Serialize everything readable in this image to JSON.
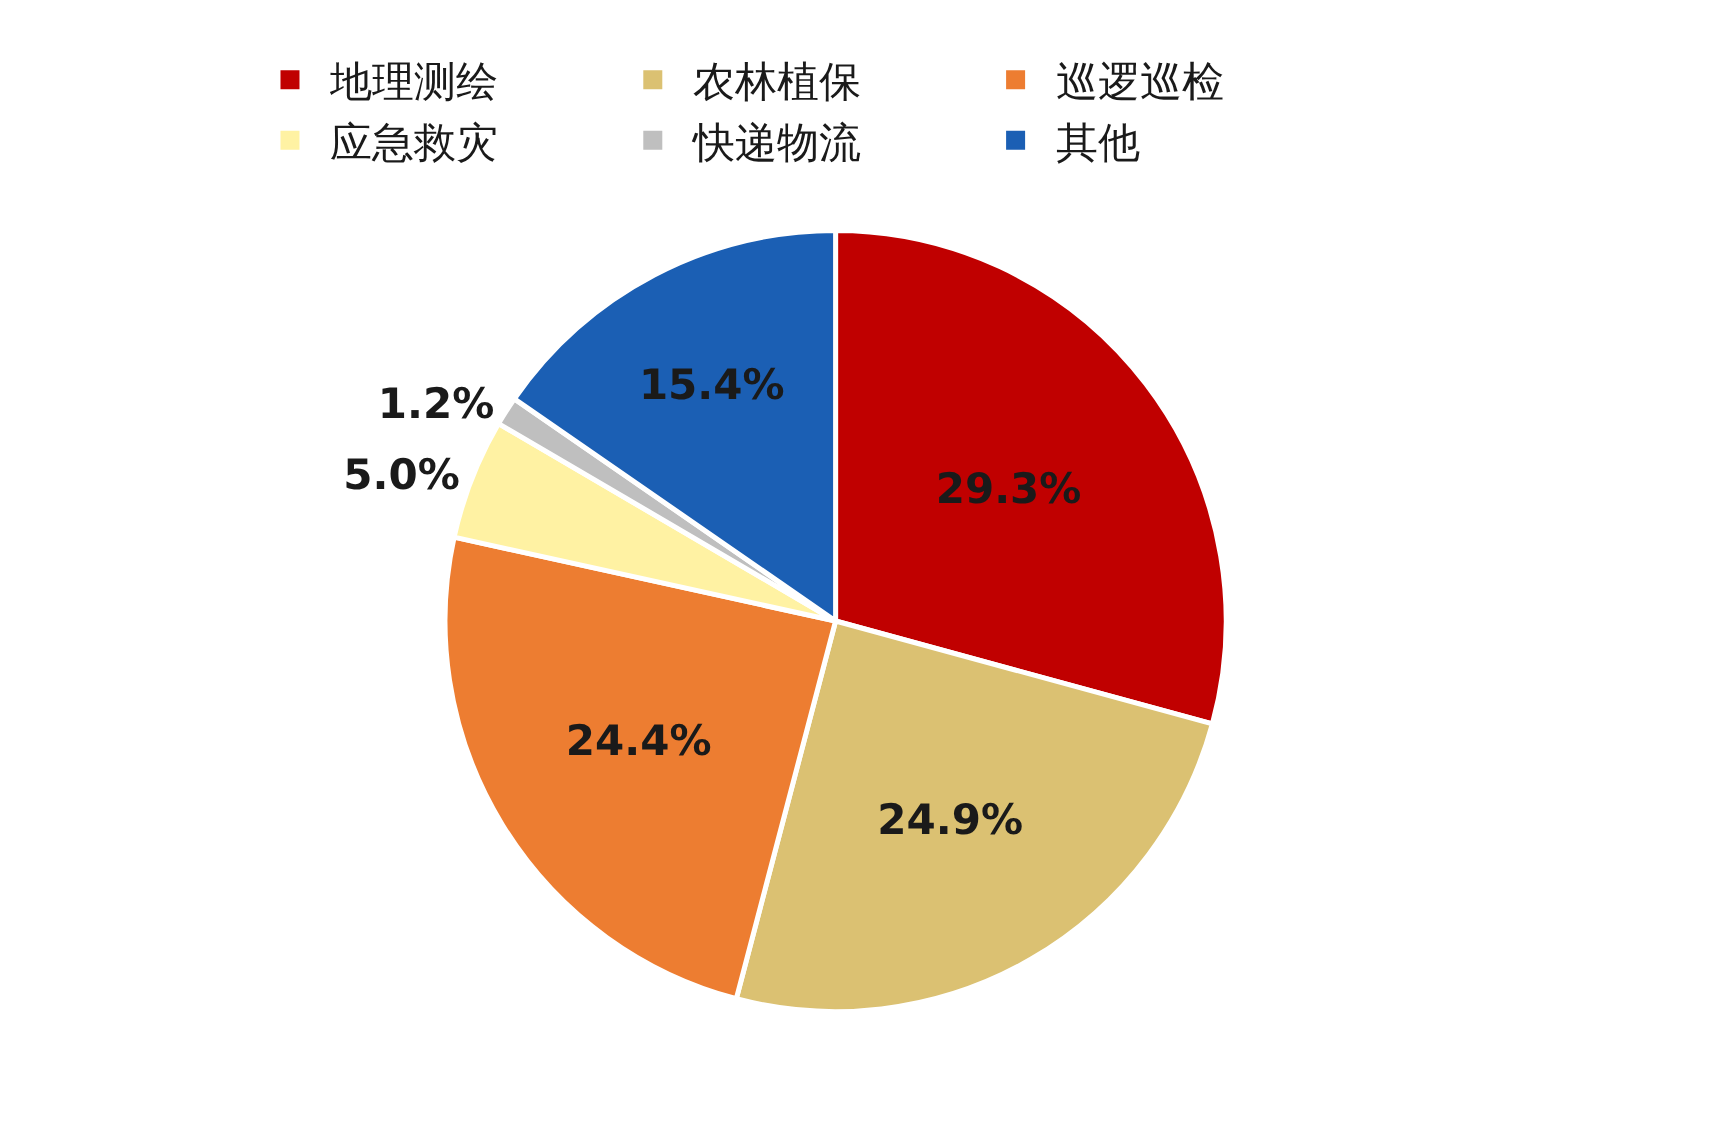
{
  "chart_data": {
    "type": "pie",
    "categories": [
      "地理测绘",
      "农林植保",
      "巡逻巡检",
      "应急救灾",
      "快递物流",
      "其他"
    ],
    "values": [
      29.3,
      24.9,
      24.4,
      5.0,
      1.2,
      15.4
    ],
    "colors": [
      "#c00000",
      "#dbc172",
      "#ed7d31",
      "#fff2a3",
      "#bfbfbf",
      "#1b5fb4"
    ],
    "value_labels": [
      "29.3%",
      "24.9%",
      "24.4%",
      "5.0%",
      "1.2%",
      "15.4%"
    ],
    "legend": "top"
  }
}
